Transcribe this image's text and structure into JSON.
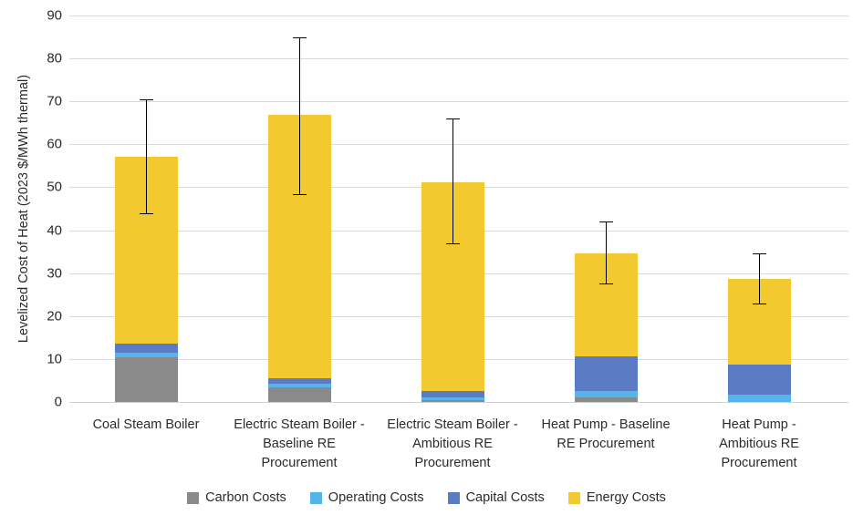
{
  "chart_data": {
    "type": "bar",
    "variant": "stacked-vertical",
    "title": "",
    "xlabel": "",
    "ylabel": "Levelized Cost of Heat (2023 $/MWh thermal)",
    "ylim": [
      0,
      90
    ],
    "ytick_step": 10,
    "ytick_labels": [
      "0",
      "10",
      "20",
      "30",
      "40",
      "50",
      "60",
      "70",
      "80",
      "90"
    ],
    "grid": true,
    "legend_position": "bottom",
    "background_color": "#ffffff",
    "gridline_color": "#d9d9d9",
    "error_bar_color": "#000000",
    "categories": [
      "Coal Steam Boiler",
      "Electric Steam Boiler - Baseline RE Procurement",
      "Electric Steam Boiler - Ambitious RE Procurement",
      "Heat Pump - Baseline RE Procurement",
      "Heat Pump - Ambitious RE Procurement"
    ],
    "category_display_lines": [
      "Coal Steam Boiler",
      "Electric Steam Boiler -\nBaseline RE\nProcurement",
      "Electric Steam Boiler -\nAmbitious RE\nProcurement",
      "Heat Pump - Baseline\nRE Procurement",
      "Heat Pump -\nAmbitious RE\nProcurement"
    ],
    "series": [
      {
        "name": "Carbon Costs",
        "color": "#8a8a8a",
        "values": [
          10.3,
          3.5,
          0.5,
          1.0,
          0.0
        ]
      },
      {
        "name": "Operating Costs",
        "color": "#55b4e9",
        "values": [
          1.1,
          0.7,
          0.6,
          1.5,
          1.7
        ]
      },
      {
        "name": "Capital Costs",
        "color": "#5b7bc4",
        "values": [
          2.2,
          1.3,
          1.5,
          8.2,
          7.0
        ]
      },
      {
        "name": "Energy Costs",
        "color": "#f2c92f",
        "values": [
          43.6,
          61.3,
          48.6,
          24.0,
          20.0
        ]
      }
    ],
    "stack_totals": [
      57.2,
      66.8,
      51.2,
      34.7,
      28.7
    ],
    "error_bars": {
      "low": [
        44.0,
        48.5,
        37.0,
        27.5,
        23.0
      ],
      "high": [
        70.5,
        85.0,
        66.0,
        42.0,
        34.5
      ]
    }
  }
}
